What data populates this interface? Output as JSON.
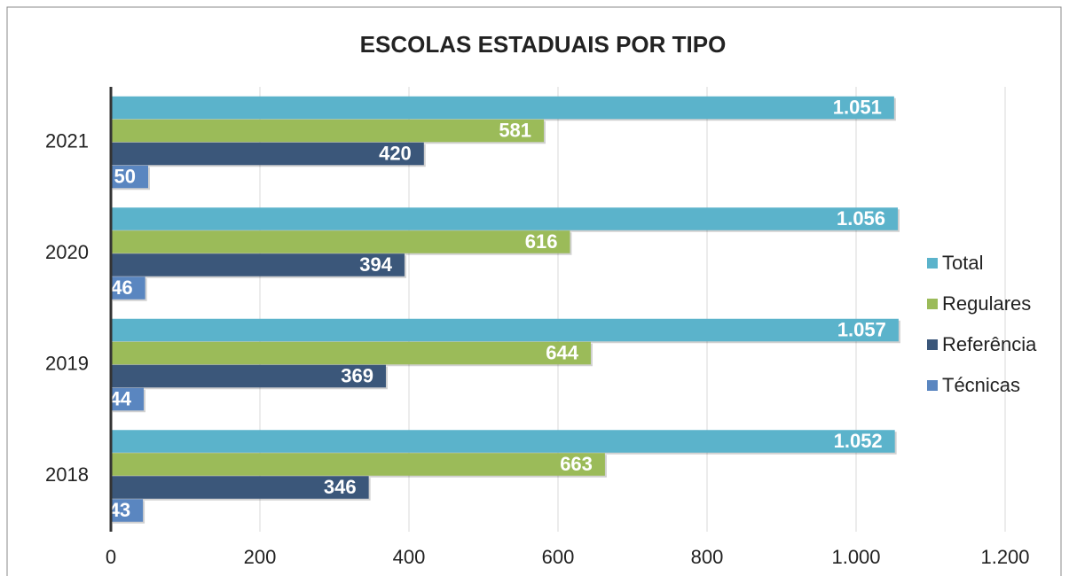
{
  "chart_data": {
    "type": "hbar",
    "title": "ESCOLAS ESTADUAIS POR TIPO",
    "categories": [
      "2021",
      "2020",
      "2019",
      "2018"
    ],
    "series": [
      {
        "name": "Total",
        "color": "#5bb3cb",
        "values": [
          1051,
          1056,
          1057,
          1052
        ],
        "value_labels": [
          "1.051",
          "1.056",
          "1.057",
          "1.052"
        ]
      },
      {
        "name": "Regulares",
        "color": "#9bbb59",
        "values": [
          581,
          616,
          644,
          663
        ]
      },
      {
        "name": "Referência",
        "color": "#3b577a",
        "values": [
          420,
          394,
          369,
          346
        ]
      },
      {
        "name": "Técnicas",
        "color": "#5a86c0",
        "values": [
          50,
          46,
          44,
          43
        ]
      }
    ],
    "xlim": [
      0,
      1200
    ],
    "xticks": [
      0,
      200,
      400,
      600,
      800,
      {
        "value": 1000,
        "label": "1.000"
      },
      {
        "value": 1200,
        "label": "1.200"
      }
    ],
    "grid": true,
    "legend": "right"
  }
}
